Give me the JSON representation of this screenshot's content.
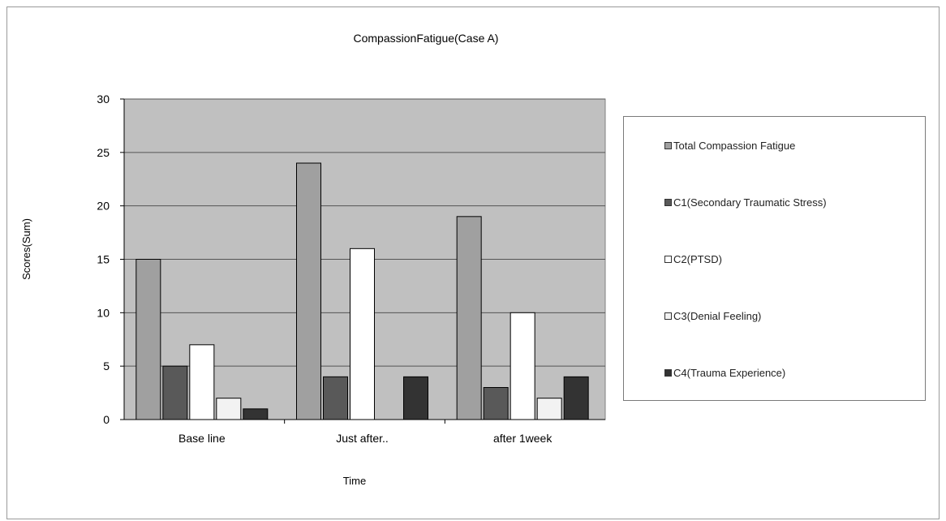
{
  "chart_data": {
    "type": "bar",
    "title": "CompassionFatigue(Case A)",
    "xlabel": "Time",
    "ylabel": "Scores(Sum)",
    "ylim": [
      0,
      30
    ],
    "yticks": [
      "0",
      "5",
      "10",
      "15",
      "20",
      "25",
      "30"
    ],
    "grid": true,
    "legend_position": "right",
    "categories": [
      "Base line",
      "Just after..",
      "after 1week"
    ],
    "series": [
      {
        "name": "Total Compassion Fatigue",
        "values": [
          15,
          24,
          19
        ],
        "color": "#a0a0a0"
      },
      {
        "name": "C1(Secondary Traumatic Stress)",
        "values": [
          5,
          4,
          3
        ],
        "color": "#595959"
      },
      {
        "name": "C2(PTSD)",
        "values": [
          7,
          16,
          10
        ],
        "color": "#ffffff"
      },
      {
        "name": "C3(Denial Feeling)",
        "values": [
          2,
          0,
          2
        ],
        "color": "#f2f2f2"
      },
      {
        "name": "C4(Trauma Experience)",
        "values": [
          1,
          4,
          4
        ],
        "color": "#333333"
      }
    ],
    "plot_background": "#c0c0c0"
  }
}
